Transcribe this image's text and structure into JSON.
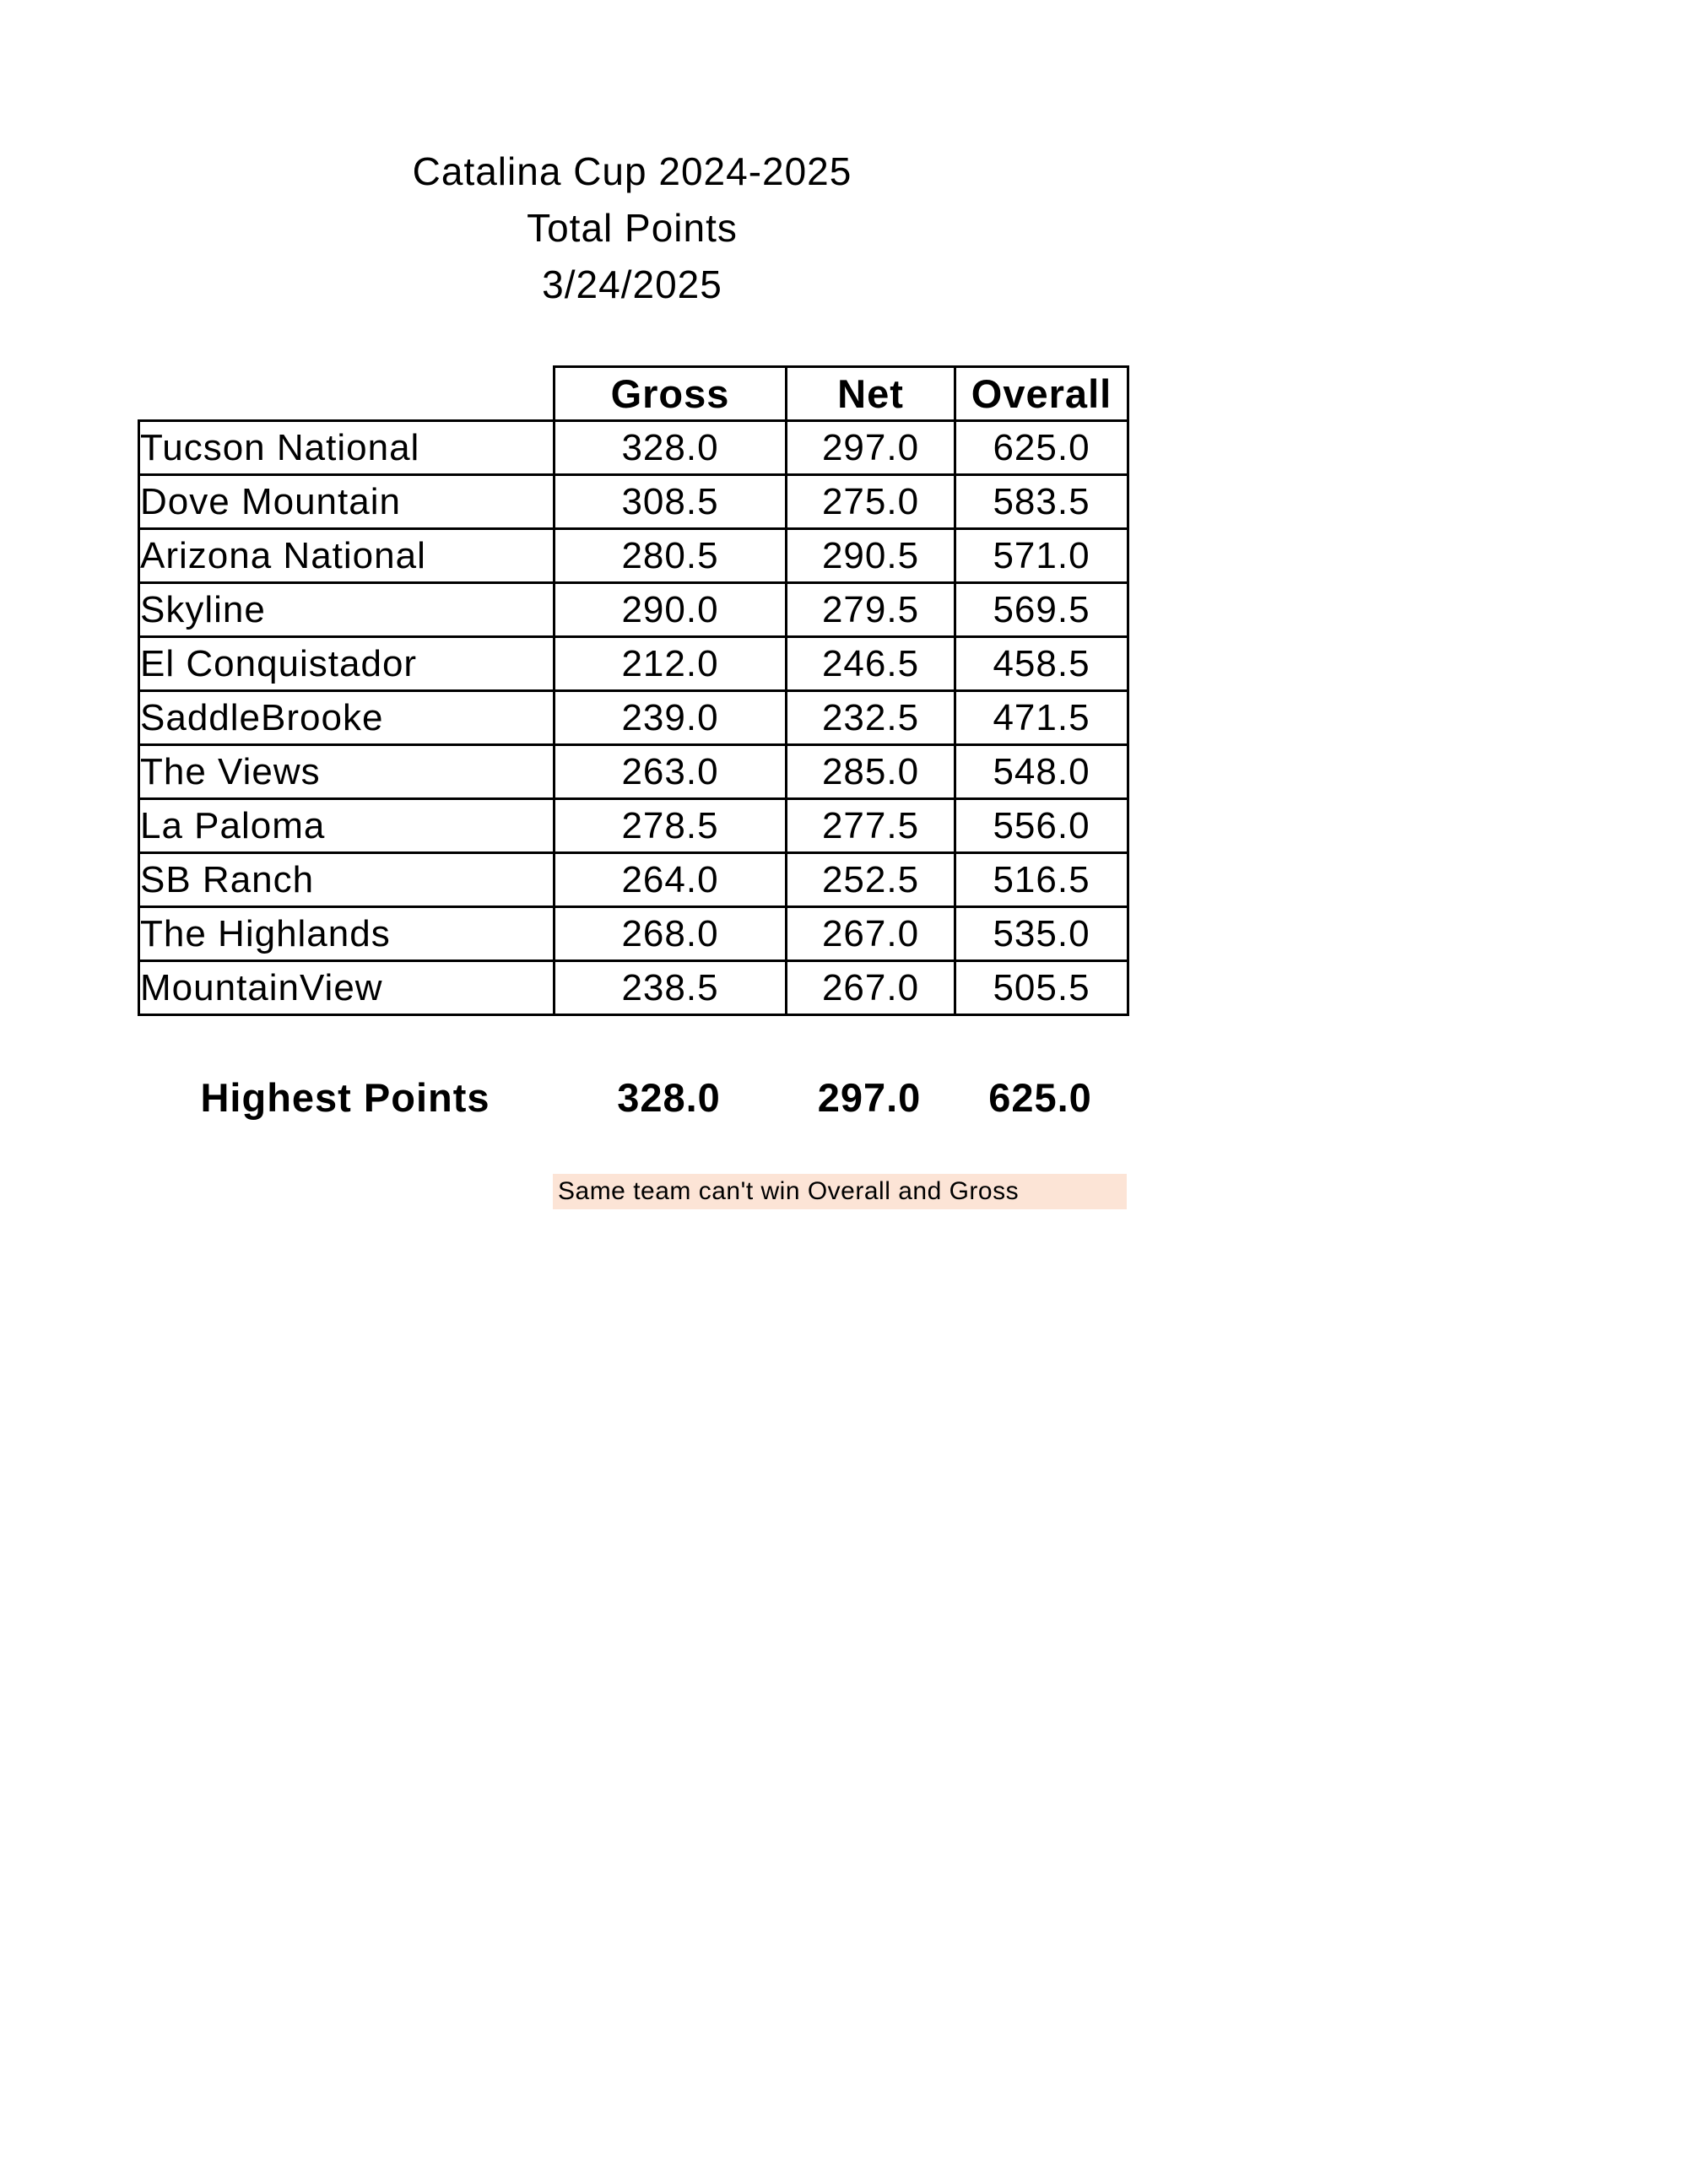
{
  "title": {
    "line1": "Catalina Cup 2024-2025",
    "line2": "Total Points",
    "line3": "3/24/2025"
  },
  "table": {
    "headers": {
      "team": "",
      "gross": "Gross",
      "net": "Net",
      "overall": "Overall"
    },
    "rows": [
      {
        "team": "Tucson National",
        "gross": "328.0",
        "net": "297.0",
        "overall": "625.0"
      },
      {
        "team": "Dove Mountain",
        "gross": "308.5",
        "net": "275.0",
        "overall": "583.5"
      },
      {
        "team": "Arizona National",
        "gross": "280.5",
        "net": "290.5",
        "overall": "571.0"
      },
      {
        "team": "Skyline",
        "gross": "290.0",
        "net": "279.5",
        "overall": "569.5"
      },
      {
        "team": "El Conquistador",
        "gross": "212.0",
        "net": "246.5",
        "overall": "458.5"
      },
      {
        "team": "SaddleBrooke",
        "gross": "239.0",
        "net": "232.5",
        "overall": "471.5"
      },
      {
        "team": "The Views",
        "gross": "263.0",
        "net": "285.0",
        "overall": "548.0"
      },
      {
        "team": "La Paloma",
        "gross": "278.5",
        "net": "277.5",
        "overall": "556.0"
      },
      {
        "team": "SB Ranch",
        "gross": "264.0",
        "net": "252.5",
        "overall": "516.5"
      },
      {
        "team": "The Highlands",
        "gross": "268.0",
        "net": "267.0",
        "overall": "535.0"
      },
      {
        "team": "MountainView",
        "gross": "238.5",
        "net": "267.0",
        "overall": "505.5"
      }
    ]
  },
  "summary": {
    "label": "Highest Points",
    "gross": "328.0",
    "net": "297.0",
    "overall": "625.0"
  },
  "note": {
    "text": "Same team can't win Overall and Gross",
    "background": "#fce4d6"
  },
  "colors": {
    "page_background": "#ffffff",
    "text": "#000000",
    "table_border": "#000000",
    "note_background": "#fce4d6"
  }
}
